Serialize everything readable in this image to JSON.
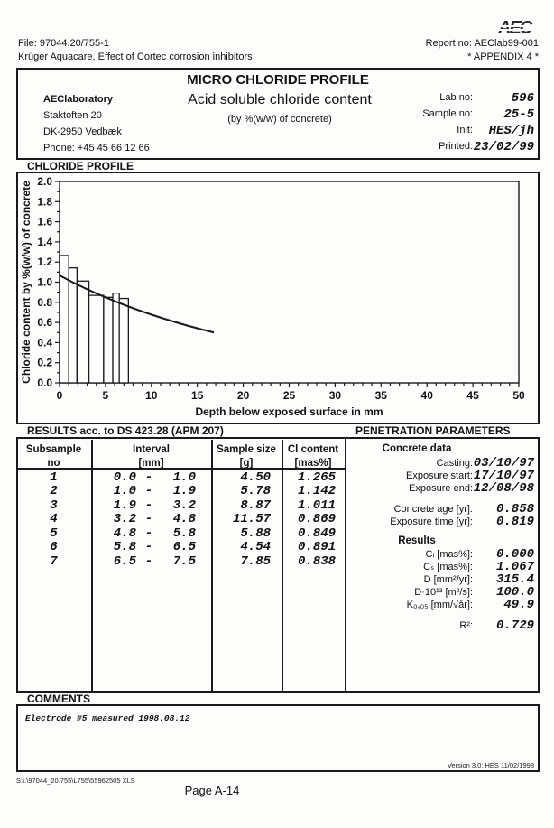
{
  "header": {
    "logo": "AEC",
    "file_label": "File:",
    "file_value": "97044.20/755-1",
    "report_label": "Report no:",
    "report_value": "AEClab99-001",
    "project_line": "Krüger Aquacare, Effect of Cortec corrosion inhibitors",
    "appendix": "* APPENDIX 4 *"
  },
  "title_block": {
    "title": "MICRO CHLORIDE PROFILE",
    "subtitle": "Acid soluble chloride content",
    "subtitle2": "(by %(w/w) of concrete)",
    "lab": {
      "name": "AEClaboratory",
      "address1": "Staktoften 20",
      "address2": "DK-2950 Vedbæk",
      "phone": "Phone: +45 45 66 12 66"
    },
    "meta": [
      {
        "label": "Lab no:",
        "value": "596"
      },
      {
        "label": "Sample no:",
        "value": "25-5"
      },
      {
        "label": "Init:",
        "value": "HES/jh"
      },
      {
        "label": "Printed:",
        "value": "23/02/99"
      }
    ]
  },
  "sections": {
    "chart": "CHLORIDE PROFILE",
    "results": "RESULTS acc. to DS 423.28 (APM 207)",
    "penetration": "PENETRATION PARAMETERS",
    "comments": "COMMENTS"
  },
  "chart_data": {
    "type": "bar",
    "title": "CHLORIDE PROFILE",
    "xlabel": "Depth below exposed surface in mm",
    "ylabel": "Chloride content by %(w/w) of concrete",
    "xlim": [
      0,
      50
    ],
    "ylim": [
      0,
      2.0
    ],
    "x_major_step": 5,
    "x_minor_step": 1,
    "y_major_step": 0.2,
    "y_minor_step": 0.1,
    "grid": false,
    "legend": "none",
    "bars": [
      {
        "from": 0.0,
        "to": 1.0,
        "value": 1.265
      },
      {
        "from": 1.0,
        "to": 1.9,
        "value": 1.142
      },
      {
        "from": 1.9,
        "to": 3.2,
        "value": 1.011
      },
      {
        "from": 3.2,
        "to": 4.8,
        "value": 0.869
      },
      {
        "from": 4.8,
        "to": 5.8,
        "value": 0.849
      },
      {
        "from": 5.8,
        "to": 6.5,
        "value": 0.891
      },
      {
        "from": 6.5,
        "to": 7.5,
        "value": 0.838
      }
    ],
    "fit_line": {
      "name": "fitted penetration profile",
      "x": [
        0,
        16.8
      ],
      "y": [
        1.067,
        0.5
      ],
      "ctrl": [
        7,
        0.72
      ]
    }
  },
  "results_table": {
    "dash": "-",
    "headers": [
      {
        "l1": "Subsample",
        "l2": "no"
      },
      {
        "l1": "Interval",
        "l2": "[mm]"
      },
      {
        "l1": "Sample size",
        "l2": "[g]"
      },
      {
        "l1": "Cl content",
        "l2": "[mas%]"
      }
    ],
    "rows": [
      {
        "no": "1",
        "from": "0.0",
        "to": "1.0",
        "size": "4.50",
        "cl": "1.265"
      },
      {
        "no": "2",
        "from": "1.0",
        "to": "1.9",
        "size": "5.78",
        "cl": "1.142"
      },
      {
        "no": "3",
        "from": "1.9",
        "to": "3.2",
        "size": "8.87",
        "cl": "1.011"
      },
      {
        "no": "4",
        "from": "3.2",
        "to": "4.8",
        "size": "11.57",
        "cl": "0.869"
      },
      {
        "no": "5",
        "from": "4.8",
        "to": "5.8",
        "size": "5.88",
        "cl": "0.849"
      },
      {
        "no": "6",
        "from": "5.8",
        "to": "6.5",
        "size": "4.54",
        "cl": "0.891"
      },
      {
        "no": "7",
        "from": "6.5",
        "to": "7.5",
        "size": "7.85",
        "cl": "0.838"
      }
    ]
  },
  "penetration": {
    "concrete_data_header": "Concrete data",
    "dates": [
      {
        "label": "Casting:",
        "value": "03/10/97"
      },
      {
        "label": "Exposure start:",
        "value": "17/10/97"
      },
      {
        "label": "Exposure end:",
        "value": "12/08/98"
      }
    ],
    "ages": [
      {
        "label": "Concrete age [yr]:",
        "value": "0.858"
      },
      {
        "label": "Exposure time [yr]:",
        "value": "0.819"
      }
    ],
    "results_header": "Results",
    "results": [
      {
        "label": "Cᵢ [mas%]:",
        "value": "0.000"
      },
      {
        "label": "Cₛ [mas%]:",
        "value": "1.067"
      },
      {
        "label": "D [mm²/yr]:",
        "value": "315.4"
      },
      {
        "label": "D·10¹³ [m²/s]:",
        "value": "100.0"
      },
      {
        "label": "K₀,₀₅ [mm/√år]:",
        "value": "49.9"
      }
    ],
    "r2": {
      "label": "R²:",
      "value": "0.729"
    }
  },
  "comments": {
    "text": "Electrode #5 measured 1998.08.12"
  },
  "footer": {
    "version": "Version 3.0: HES 11/02/1998",
    "path": "S:\\.\\97044_20.755\\L755\\55962505 XLS",
    "page": "Page A-14"
  }
}
